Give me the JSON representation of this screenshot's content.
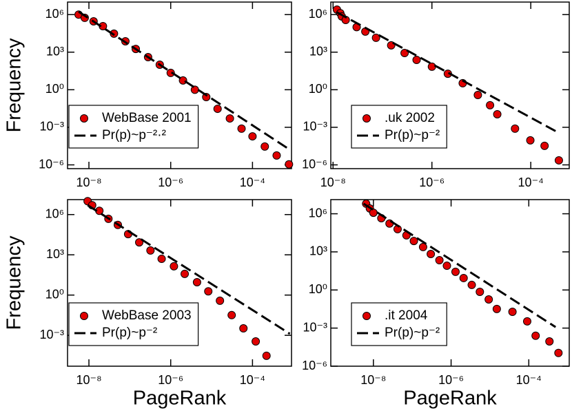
{
  "chart_data": [
    {
      "type": "scatter",
      "ylabel": "Frequency",
      "xscale": "log",
      "yscale": "log",
      "xlim": [
        3e-09,
        0.0009
      ],
      "ylim": [
        5e-07,
        10000000.0
      ],
      "xticks": [
        {
          "value": 1e-08,
          "label": "10⁻⁸"
        },
        {
          "value": 1e-06,
          "label": "10⁻⁶"
        },
        {
          "value": 0.0001,
          "label": "10⁻⁴"
        }
      ],
      "yticks": [
        {
          "value": 1e-06,
          "label": "10⁻⁶"
        },
        {
          "value": 0.001,
          "label": "10⁻³"
        },
        {
          "value": 1,
          "label": "10⁰"
        },
        {
          "value": 1000.0,
          "label": "10³"
        },
        {
          "value": 1000000.0,
          "label": "10⁶"
        }
      ],
      "legend": "lower left",
      "series": [
        {
          "name": "WebBase 2001",
          "color": "#e00000",
          "style": "markers",
          "x": [
            5.6e-09,
            7.9e-09,
            1.3e-08,
            2.2e-08,
            4.1e-08,
            7.8e-08,
            1.4e-07,
            2.8e-07,
            5.4e-07,
            1e-06,
            2e-06,
            3.9e-06,
            7.4e-06,
            1.4e-05,
            2.8e-05,
            5.4e-05,
            0.0001,
            0.0002,
            0.00039,
            0.00078
          ],
          "values": [
            1000000.0,
            550000.0,
            290000.0,
            120000.0,
            30000.0,
            7400.0,
            1800.0,
            400,
            100,
            22,
            5.5,
            1.0,
            0.26,
            0.03,
            0.0051,
            0.00078,
            0.00019,
            2.9e-05,
            5.6e-06,
            1.1e-06
          ]
        },
        {
          "name": "Pr(p)~p⁻²·²",
          "color": "#000000",
          "style": "dashed",
          "x": [
            5.6e-09,
            0.00085
          ],
          "values": [
            1700000.0,
            1.5e-05
          ]
        }
      ]
    },
    {
      "type": "scatter",
      "xscale": "log",
      "yscale": "log",
      "xlim": [
        9e-09,
        0.0006
      ],
      "ylim": [
        5e-07,
        10000000.0
      ],
      "xticks": [
        {
          "value": 1e-08,
          "label": "10⁻⁸"
        },
        {
          "value": 1e-06,
          "label": "10⁻⁶"
        },
        {
          "value": 0.0001,
          "label": "10⁻⁴"
        }
      ],
      "yticks": [
        {
          "value": 1e-06,
          "label": "10⁻⁶"
        },
        {
          "value": 0.001,
          "label": "10⁻³"
        },
        {
          "value": 1,
          "label": "10⁰"
        },
        {
          "value": 1000.0,
          "label": "10³"
        },
        {
          "value": 1000000.0,
          "label": "10⁶"
        }
      ],
      "legend": "lower left",
      "series": [
        {
          "name": ".uk 2002",
          "color": "#e00000",
          "style": "markers",
          "x": [
            1.2e-08,
            1.4e-08,
            1.5e-08,
            1.8e-08,
            3e-08,
            4.5e-08,
            7.4e-08,
            1.5e-07,
            2.8e-07,
            4.9e-07,
            1e-06,
            2.1e-06,
            4.2e-06,
            8.5e-06,
            1.5e-05,
            2.1e-05,
            4.8e-05,
            9.8e-05,
            0.00019,
            0.00037
          ],
          "values": [
            2500000.0,
            1300000.0,
            710000.0,
            370000.0,
            100000.0,
            44000.0,
            14000.0,
            3500.0,
            850,
            240,
            69,
            19,
            3.3,
            0.38,
            0.058,
            0.011,
            0.00078,
            9.1e-05,
            3.3e-05,
            2.3e-06
          ]
        },
        {
          "name": "Pr(p)~p⁻²",
          "color": "#000000",
          "style": "dashed",
          "x": [
            1.2e-08,
            0.00037
          ],
          "values": [
            1500000.0,
            0.00036
          ]
        }
      ]
    },
    {
      "type": "scatter",
      "ylabel": "Frequency",
      "xlabel": "PageRank",
      "xscale": "log",
      "yscale": "log",
      "xlim": [
        3e-09,
        0.0009
      ],
      "ylim": [
        5e-06,
        13000000.0
      ],
      "xticks": [
        {
          "value": 1e-08,
          "label": "10⁻⁸"
        },
        {
          "value": 1e-06,
          "label": "10⁻⁶"
        },
        {
          "value": 0.0001,
          "label": "10⁻⁴"
        }
      ],
      "yticks": [
        {
          "value": 0.001,
          "label": "10⁻³"
        },
        {
          "value": 1,
          "label": "10⁰"
        },
        {
          "value": 1000.0,
          "label": "10³"
        },
        {
          "value": 1000000.0,
          "label": "10⁶"
        }
      ],
      "legend": "lower left",
      "series": [
        {
          "name": "WebBase 2003",
          "color": "#e00000",
          "style": "markers",
          "x": [
            9.3e-09,
            1.2e-08,
            1.8e-08,
            3e-08,
            5.1e-08,
            9.1e-08,
            1.7e-07,
            3.2e-07,
            6e-07,
            1.2e-06,
            2.2e-06,
            4.4e-06,
            8.3e-06,
            1.6e-05,
            3.1e-05,
            6e-05,
            0.00012,
            0.00022
          ],
          "values": [
            10000000.0,
            5000000.0,
            1900000.0,
            480000.0,
            170000.0,
            35000.0,
            8500.0,
            2100.0,
            500,
            140,
            38,
            9.1,
            1.9,
            0.38,
            0.032,
            0.0033,
            0.00035,
            3e-05
          ]
        },
        {
          "name": "Pr(p)~p⁻²",
          "color": "#000000",
          "style": "dashed",
          "x": [
            9.3e-09,
            0.00082
          ],
          "values": [
            5000000.0,
            0.0013
          ]
        }
      ]
    },
    {
      "type": "scatter",
      "xlabel": "PageRank",
      "xscale": "log",
      "yscale": "log",
      "xlim": [
        8e-10,
        0.0011
      ],
      "ylim": [
        1e-06,
        13000000.0
      ],
      "xticks": [
        {
          "value": 1e-08,
          "label": "10⁻⁸"
        },
        {
          "value": 1e-06,
          "label": "10⁻⁶"
        },
        {
          "value": 0.0001,
          "label": "10⁻⁴"
        }
      ],
      "yticks": [
        {
          "value": 1e-06,
          "label": "10⁻⁶"
        },
        {
          "value": 0.001,
          "label": "10⁻³"
        },
        {
          "value": 1,
          "label": "10⁰"
        },
        {
          "value": 1000.0,
          "label": "10³"
        },
        {
          "value": 1000000.0,
          "label": "10⁶"
        }
      ],
      "legend": "lower left",
      "series": [
        {
          "name": ".it 2004",
          "color": "#e00000",
          "style": "markers",
          "x": [
            6.5e-09,
            8.1e-09,
            1e-08,
            1.6e-08,
            2.6e-08,
            4.2e-08,
            7.1e-08,
            1.1e-07,
            1.9e-07,
            3e-07,
            5e-07,
            7.8e-07,
            1.3e-06,
            2.1e-06,
            3.4e-06,
            5.5e-06,
            9.3e-06,
            1.5e-05,
            3.8e-05,
            9.1e-05,
            0.00015,
            0.00034,
            0.00058
          ],
          "values": [
            6200000.0,
            2600000.0,
            1200000.0,
            450000.0,
            170000.0,
            62000.0,
            20000.0,
            7200.0,
            2400.0,
            680,
            220,
            81,
            27,
            8.7,
            2.5,
            0.71,
            0.18,
            0.032,
            0.019,
            0.0034,
            0.00025,
            8.9e-05,
            1.1e-05
          ]
        },
        {
          "name": "Pr(p)~p⁻²",
          "color": "#000000",
          "style": "dashed",
          "x": [
            5.6e-09,
            0.00049
          ],
          "values": [
            6200000.0,
            0.0012
          ]
        }
      ]
    }
  ]
}
